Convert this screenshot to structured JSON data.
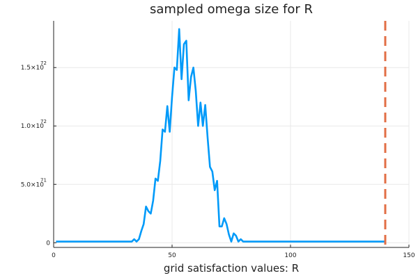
{
  "chart_data": {
    "type": "line",
    "title": "sampled omega size for R",
    "xlabel": "grid satisfaction values: R",
    "ylabel": "",
    "xlim": [
      0,
      150
    ],
    "ylim": [
      -4e+70,
      1.9e+72
    ],
    "grid": true,
    "legend": "none",
    "xticks": [
      {
        "value": 0,
        "label": "0"
      },
      {
        "value": 50,
        "label": "50"
      },
      {
        "value": 100,
        "label": "100"
      },
      {
        "value": 150,
        "label": "150"
      }
    ],
    "yticks": [
      {
        "value": 0,
        "mantissa": "0",
        "exponent": ""
      },
      {
        "value": 5e+71,
        "mantissa": "5.0×10",
        "exponent": "71"
      },
      {
        "value": 1e+72,
        "mantissa": "1.0×10",
        "exponent": "72"
      },
      {
        "value": 1.5e+72,
        "mantissa": "1.5×10",
        "exponent": "72"
      }
    ],
    "series": [
      {
        "color": "#009af9",
        "style": "solid",
        "x": [
          1,
          5,
          10,
          15,
          20,
          25,
          30,
          33,
          34,
          35,
          36,
          37,
          38,
          39,
          40,
          41,
          42,
          43,
          44,
          45,
          46,
          47,
          48,
          49,
          50,
          51,
          52,
          53,
          54,
          55,
          56,
          57,
          58,
          59,
          60,
          61,
          62,
          63,
          64,
          65,
          66,
          67,
          68,
          69,
          70,
          71,
          72,
          73,
          74,
          75,
          76,
          77,
          78,
          79,
          80,
          85,
          90,
          100,
          110,
          120,
          130,
          140
        ],
        "y": [
          1e+70,
          1e+70,
          1e+70,
          1e+70,
          1e+70,
          1e+70,
          1e+70,
          1e+70,
          3e+70,
          1e+70,
          3e+70,
          1e+71,
          1.6e+71,
          3.1e+71,
          2.7e+71,
          2.5e+71,
          3.6e+71,
          5.5e+71,
          5.3e+71,
          7e+71,
          9.7e+71,
          9.5e+71,
          1.17e+72,
          9.5e+71,
          1.25e+72,
          1.5e+72,
          1.48e+72,
          1.83e+72,
          1.4e+72,
          1.7e+72,
          1.73e+72,
          1.22e+72,
          1.42e+72,
          1.5e+72,
          1.3e+72,
          1e+72,
          1.2e+72,
          1e+72,
          1.18e+72,
          9e+71,
          6.5e+71,
          6.1e+71,
          4.5e+71,
          5.3e+71,
          1.4e+71,
          1.4e+71,
          2.1e+71,
          1.6e+71,
          7e+70,
          1e+70,
          8e+70,
          6e+70,
          1e+70,
          3e+70,
          1e+70,
          1e+70,
          1e+70,
          1e+70,
          1e+70,
          1e+70,
          1e+70,
          1e+70
        ]
      },
      {
        "color": "#e26f46",
        "style": "dashed",
        "vline": 140
      }
    ]
  }
}
